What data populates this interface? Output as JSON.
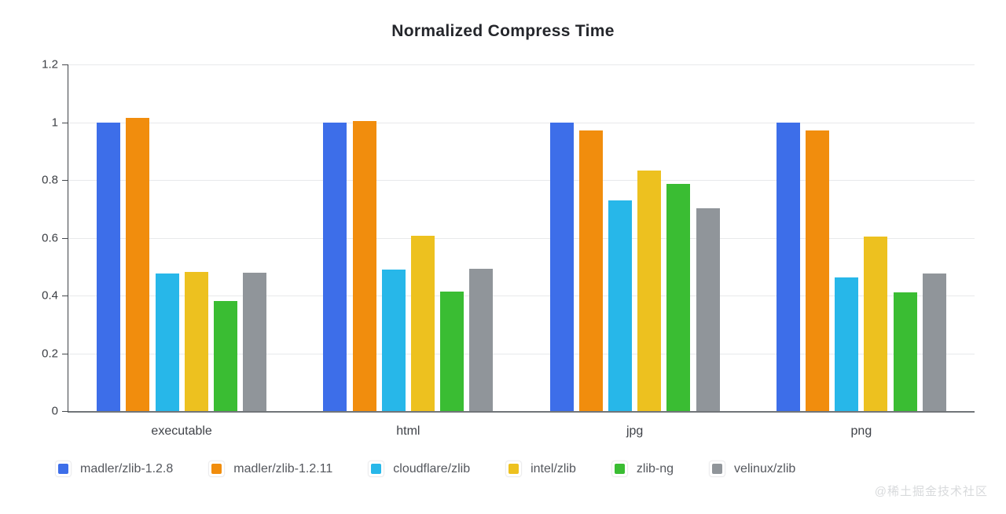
{
  "title": "Normalized Compress Time",
  "watermark": "@稀土掘金技术社区",
  "chart_data": {
    "type": "bar",
    "title": "Normalized Compress Time",
    "categories": [
      "executable",
      "html",
      "jpg",
      "png"
    ],
    "series": [
      {
        "name": "madler/zlib-1.2.8",
        "color": "#3D6EE9",
        "values": [
          1.0,
          1.0,
          1.0,
          1.0
        ]
      },
      {
        "name": "madler/zlib-1.2.11",
        "color": "#F18D0D",
        "values": [
          1.015,
          1.005,
          0.972,
          0.972
        ]
      },
      {
        "name": "cloudflare/zlib",
        "color": "#27B7E9",
        "values": [
          0.476,
          0.49,
          0.73,
          0.462
        ]
      },
      {
        "name": "intel/zlib",
        "color": "#EDC11F",
        "values": [
          0.483,
          0.608,
          0.833,
          0.605
        ]
      },
      {
        "name": "zlib-ng",
        "color": "#3ABD33",
        "values": [
          0.38,
          0.415,
          0.787,
          0.412
        ]
      },
      {
        "name": "velinux/zlib",
        "color": "#90959A",
        "values": [
          0.48,
          0.492,
          0.703,
          0.477
        ]
      }
    ],
    "xlabel": "",
    "ylabel": "",
    "ylim": [
      0,
      1.2
    ],
    "yticks": [
      0,
      0.2,
      0.4,
      0.6,
      0.8,
      1,
      1.2
    ],
    "grid": true,
    "legend_position": "bottom"
  }
}
